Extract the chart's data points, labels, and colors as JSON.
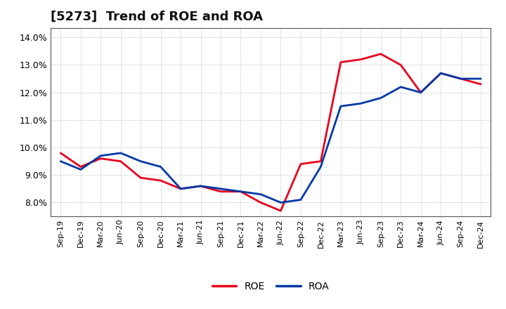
{
  "title": "[5273]  Trend of ROE and ROA",
  "x_labels": [
    "Sep-19",
    "Dec-19",
    "Mar-20",
    "Jun-20",
    "Sep-20",
    "Dec-20",
    "Mar-21",
    "Jun-21",
    "Sep-21",
    "Dec-21",
    "Mar-22",
    "Jun-22",
    "Sep-22",
    "Dec-22",
    "Mar-23",
    "Jun-23",
    "Sep-23",
    "Dec-23",
    "Mar-24",
    "Jun-24",
    "Sep-24",
    "Dec-24"
  ],
  "ROE": [
    9.8,
    9.3,
    9.6,
    9.5,
    8.9,
    8.8,
    8.5,
    8.6,
    8.4,
    8.4,
    8.0,
    7.7,
    9.4,
    9.5,
    13.1,
    13.2,
    13.4,
    13.0,
    12.0,
    12.7,
    12.5,
    12.3
  ],
  "ROA": [
    9.5,
    9.2,
    9.7,
    9.8,
    9.5,
    9.3,
    8.5,
    8.6,
    8.5,
    8.4,
    8.3,
    8.0,
    8.1,
    9.3,
    11.5,
    11.6,
    11.8,
    12.2,
    12.0,
    12.7,
    12.5,
    12.5
  ],
  "ROE_color": "#e8001c",
  "ROA_color": "#0038a8",
  "background_color": "#ffffff",
  "plot_bg_color": "#ffffff",
  "grid_color": "#888888",
  "ylim": [
    7.5,
    14.35
  ],
  "yticks": [
    8.0,
    9.0,
    10.0,
    11.0,
    12.0,
    13.0,
    14.0
  ],
  "line_width": 2.0,
  "title_fontsize": 13,
  "tick_fontsize": 9,
  "xtick_fontsize": 8
}
